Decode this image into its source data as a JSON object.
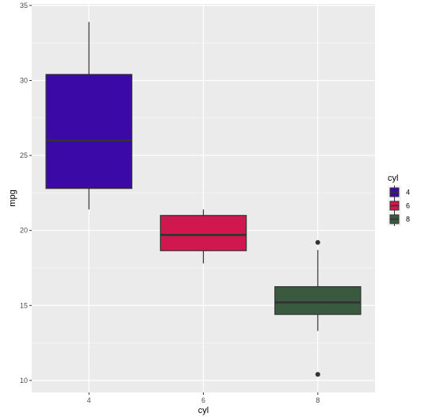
{
  "chart_data": {
    "type": "boxplot",
    "xlabel": "cyl",
    "ylabel": "mpg",
    "categories": [
      "4",
      "6",
      "8"
    ],
    "ylim": [
      9.2,
      35.1
    ],
    "yticks": [
      10,
      15,
      20,
      25,
      30,
      35
    ],
    "grid": true,
    "legend": {
      "title": "cyl",
      "placement": "right",
      "entries": [
        "4",
        "6",
        "8"
      ]
    },
    "boxes": [
      {
        "category": "4",
        "lower_whisker": 21.4,
        "q1": 22.8,
        "median": 26.0,
        "q3": 30.4,
        "upper_whisker": 33.9,
        "outliers": [],
        "fill": "#3b0aa6"
      },
      {
        "category": "6",
        "lower_whisker": 17.8,
        "q1": 18.65,
        "median": 19.7,
        "q3": 21.0,
        "upper_whisker": 21.4,
        "outliers": [],
        "fill": "#d0174e"
      },
      {
        "category": "8",
        "lower_whisker": 13.3,
        "q1": 14.4,
        "median": 15.2,
        "q3": 16.25,
        "upper_whisker": 18.7,
        "outliers": [
          10.4,
          19.2
        ],
        "fill": "#3a5a3f"
      }
    ],
    "colors": {
      "panel_background": "#ebebeb",
      "grid_major": "#ffffff",
      "box_outline": "#333333",
      "tick_text": "#4d4d4d"
    }
  }
}
